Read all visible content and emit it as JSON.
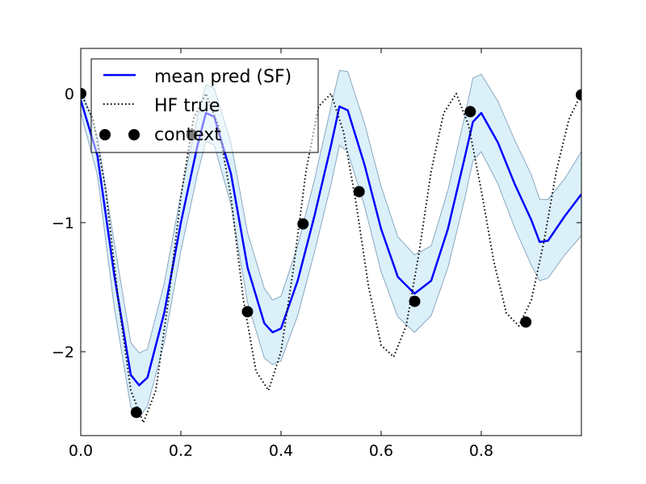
{
  "chart_data": {
    "type": "line",
    "xlim": [
      0.0,
      1.0
    ],
    "ylim": [
      -2.65,
      0.35
    ],
    "x_ticks": [
      {
        "value": 0.0,
        "label": "0.0"
      },
      {
        "value": 0.2,
        "label": "0.2"
      },
      {
        "value": 0.4,
        "label": "0.4"
      },
      {
        "value": 0.6,
        "label": "0.6"
      },
      {
        "value": 0.8,
        "label": "0.8"
      }
    ],
    "y_ticks": [
      {
        "value": 0,
        "label": "0"
      },
      {
        "value": -1,
        "label": "−1"
      },
      {
        "value": -2,
        "label": "−2"
      }
    ],
    "grid": false,
    "legend_position": "top-left",
    "series": [
      {
        "name": "mean pred (SF)",
        "kind": "line",
        "color": "#0000ff",
        "x": [
          0.0,
          0.0333,
          0.0667,
          0.1,
          0.1167,
          0.1333,
          0.1667,
          0.2,
          0.2333,
          0.25,
          0.2667,
          0.3,
          0.3333,
          0.3667,
          0.3833,
          0.4,
          0.4333,
          0.4667,
          0.5,
          0.5167,
          0.5333,
          0.5667,
          0.6,
          0.6333,
          0.6667,
          0.7,
          0.7333,
          0.7667,
          0.7833,
          0.8,
          0.8333,
          0.8667,
          0.9,
          0.9167,
          0.9333,
          0.9667,
          1.0
        ],
        "y": [
          -0.05,
          -0.48,
          -1.4,
          -2.18,
          -2.26,
          -2.2,
          -1.7,
          -1.0,
          -0.4,
          -0.15,
          -0.18,
          -0.62,
          -1.35,
          -1.78,
          -1.85,
          -1.82,
          -1.45,
          -0.95,
          -0.4,
          -0.1,
          -0.13,
          -0.55,
          -1.05,
          -1.42,
          -1.55,
          -1.45,
          -1.05,
          -0.5,
          -0.22,
          -0.15,
          -0.38,
          -0.7,
          -0.98,
          -1.15,
          -1.14,
          -0.95,
          -0.78
        ]
      },
      {
        "name": "uncertainty band",
        "kind": "band",
        "color": "#87ceeb",
        "x": [
          0.0,
          0.0333,
          0.0667,
          0.1,
          0.1167,
          0.1333,
          0.1667,
          0.2,
          0.2333,
          0.25,
          0.2667,
          0.3,
          0.3333,
          0.3667,
          0.3833,
          0.4,
          0.4333,
          0.4667,
          0.5,
          0.5167,
          0.5333,
          0.5667,
          0.6,
          0.6333,
          0.6667,
          0.7,
          0.7333,
          0.7667,
          0.7833,
          0.8,
          0.8333,
          0.8667,
          0.9,
          0.9167,
          0.9333,
          0.9667,
          1.0
        ],
        "lower": [
          -0.15,
          -0.63,
          -1.65,
          -2.43,
          -2.51,
          -2.42,
          -1.93,
          -1.22,
          -0.62,
          -0.37,
          -0.4,
          -0.86,
          -1.62,
          -2.05,
          -2.1,
          -2.07,
          -1.72,
          -1.23,
          -0.7,
          -0.4,
          -0.45,
          -0.87,
          -1.38,
          -1.73,
          -1.85,
          -1.72,
          -1.35,
          -0.82,
          -0.52,
          -0.45,
          -0.7,
          -1.04,
          -1.33,
          -1.45,
          -1.43,
          -1.25,
          -1.1
        ],
        "upper": [
          0.05,
          -0.33,
          -1.15,
          -1.93,
          -2.01,
          -1.98,
          -1.47,
          -0.78,
          -0.18,
          0.07,
          0.04,
          -0.38,
          -1.08,
          -1.51,
          -1.6,
          -1.57,
          -1.18,
          -0.67,
          -0.1,
          0.18,
          0.17,
          -0.23,
          -0.72,
          -1.11,
          -1.25,
          -1.18,
          -0.75,
          -0.18,
          0.12,
          0.15,
          -0.06,
          -0.36,
          -0.63,
          -0.82,
          -0.82,
          -0.66,
          -0.45
        ]
      },
      {
        "name": "HF true",
        "kind": "line",
        "dash": "dotted",
        "color": "#000000",
        "x": [
          0.0,
          0.025,
          0.05,
          0.075,
          0.1,
          0.125,
          0.15,
          0.175,
          0.2,
          0.225,
          0.25,
          0.275,
          0.3,
          0.325,
          0.35,
          0.375,
          0.4,
          0.425,
          0.45,
          0.475,
          0.5,
          0.525,
          0.55,
          0.575,
          0.6,
          0.625,
          0.65,
          0.675,
          0.7,
          0.725,
          0.75,
          0.775,
          0.8,
          0.825,
          0.85,
          0.875,
          0.9,
          0.925,
          0.95,
          0.975,
          1.0
        ],
        "y": [
          0.0,
          -0.2,
          -0.75,
          -1.6,
          -2.3,
          -2.55,
          -2.3,
          -1.6,
          -0.8,
          -0.2,
          0.0,
          -0.25,
          -0.8,
          -1.6,
          -2.15,
          -2.3,
          -2.0,
          -1.35,
          -0.6,
          -0.1,
          0.0,
          -0.3,
          -0.85,
          -1.5,
          -1.95,
          -2.04,
          -1.8,
          -1.25,
          -0.6,
          -0.15,
          0.0,
          -0.25,
          -0.75,
          -1.3,
          -1.7,
          -1.8,
          -1.6,
          -1.15,
          -0.6,
          -0.2,
          0.0
        ]
      },
      {
        "name": "context",
        "kind": "scatter",
        "color": "#000000",
        "x": [
          0.0,
          0.111,
          0.222,
          0.333,
          0.444,
          0.556,
          0.667,
          0.778,
          0.889,
          1.0
        ],
        "y": [
          0.0,
          -2.47,
          -0.32,
          -1.69,
          -1.01,
          -0.76,
          -1.61,
          -0.14,
          -1.77,
          -0.01
        ]
      }
    ]
  }
}
